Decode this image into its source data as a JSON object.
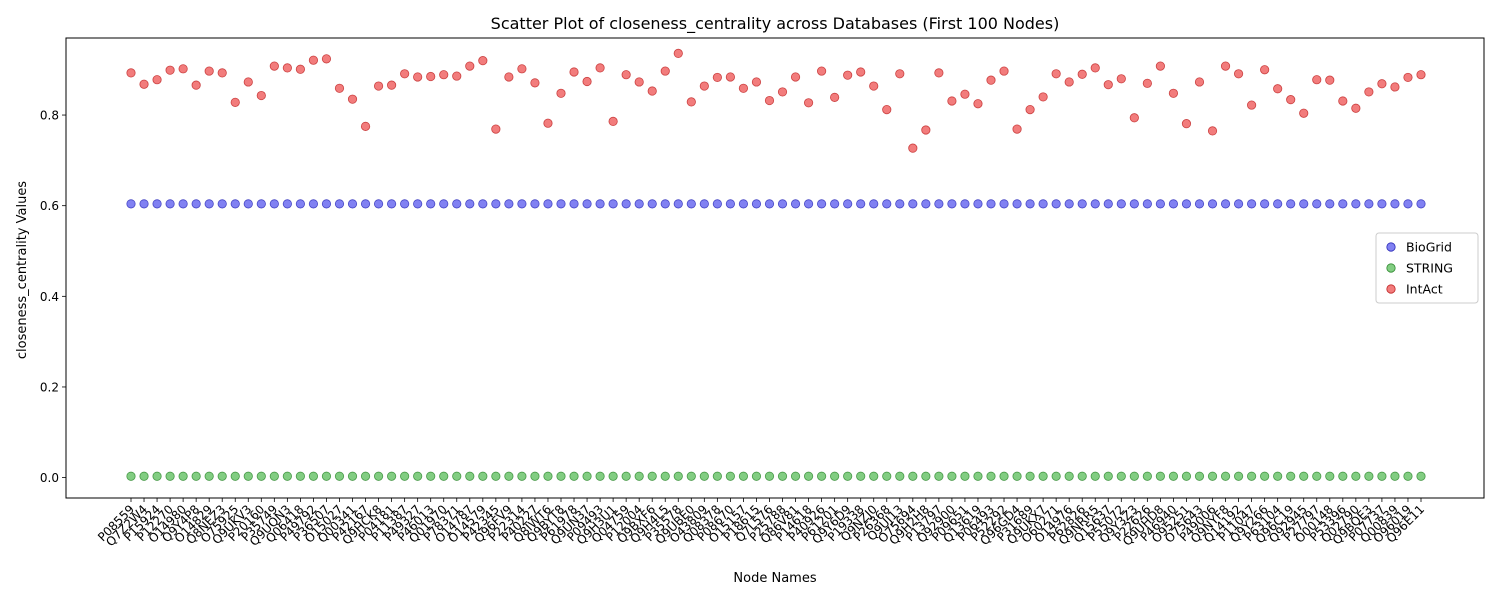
{
  "chart_data": {
    "type": "scatter",
    "title": "Scatter Plot of closeness_centrality across Databases (First 100 Nodes)",
    "xlabel": "Node Names",
    "ylabel": "closeness_centrality Values",
    "ylim": [
      -0.045,
      0.97
    ],
    "yticks": [
      0.0,
      0.2,
      0.4,
      0.6,
      0.8
    ],
    "ytick_labels": [
      "0.0",
      "0.2",
      "0.4",
      "0.6",
      "0.8"
    ],
    "grid": false,
    "legend_position": "center-right",
    "categories": [
      "P08559",
      "Q7Z2W4",
      "P15924",
      "P12270",
      "O14980",
      "Q9Y4P8",
      "O14829",
      "Q8NEZ3",
      "O75925",
      "Q9UKV3",
      "P20160",
      "P35749",
      "Q9UQN3",
      "Q06418",
      "P49792",
      "P36507",
      "O15027",
      "Q00341",
      "P42167",
      "Q9HCK8",
      "P04181",
      "P11387",
      "P49327",
      "P46013",
      "Q01970",
      "P78371",
      "O14787",
      "O14579",
      "P42345",
      "Q96FV9",
      "P22314",
      "P40227",
      "Q8IWT6",
      "Q9BYT8",
      "P61978",
      "Q9UN37",
      "P09493",
      "Q9H3U1",
      "Q04759",
      "P12004",
      "Q9BXF6",
      "Q9H4L5",
      "P35578",
      "Q9UBE0",
      "O43809",
      "Q08378",
      "P08670",
      "O15157",
      "P18615",
      "Q7L576",
      "P25788",
      "Q86V81",
      "P14618",
      "P40926",
      "P61201",
      "Q9Y6D9",
      "P19338",
      "Q9NZJ0",
      "P26368",
      "Q9UJ13",
      "O75694",
      "Q9H2H8",
      "P13797",
      "Q92900",
      "P09651",
      "Q13619",
      "P06493",
      "P52292",
      "Q96GD4",
      "P31689",
      "Q9UKX7",
      "O60271",
      "O14976",
      "P62826",
      "Q9NRR5",
      "Q15637",
      "P55072",
      "Q9Y3Z3",
      "P22626",
      "Q9UHD8",
      "P46940",
      "O95251",
      "O75643",
      "P49006",
      "Q9NYF8",
      "Q14192",
      "P11047",
      "Q9Y266",
      "P63104",
      "Q96C19",
      "Q92945",
      "P27797",
      "O00148",
      "P53396",
      "Q02790",
      "Q9BQE3",
      "P07737",
      "Q00839",
      "O96019",
      "Q96E11"
    ],
    "category_labels": [
      "P08559",
      "Q7Z2W4",
      "P15924",
      "P12270",
      "O14980",
      "Q9Y4P8",
      "O14829",
      "Q8NEZ3",
      "O75925",
      "Q9UKV3",
      "P20160",
      "P35749",
      "Q9UQN3",
      "Q06418",
      "P49792",
      "P36507",
      "O15027",
      "Q00341",
      "P42167",
      "Q9HCK8",
      "P04181",
      "P11387",
      "P49327",
      "P46013",
      "Q01970",
      "P78371",
      "O14787",
      "O14579",
      "P42345",
      "Q96FV9",
      "P22314",
      "P40227",
      "Q8IWT6",
      "Q9BYT8",
      "P61978",
      "Q9UN37",
      "P09493",
      "Q9H3U1",
      "Q04759",
      "P12004",
      "Q9BXF6",
      "Q9H4L5",
      "P35578",
      "Q9UBE0",
      "O43809",
      "Q08378",
      "P08670",
      "O15157",
      "P18615",
      "Q7L576",
      "P25788",
      "Q86V81",
      "P14618",
      "P40926",
      "P61201",
      "Q9Y6D9",
      "P19338",
      "Q9NZJ0",
      "P26368",
      "Q9UJ13",
      "O75694",
      "Q9H2H8",
      "P13797",
      "Q92900",
      "P09651",
      "Q13619",
      "P06493",
      "P52292",
      "Q96GD4",
      "P31689",
      "Q9UKX7",
      "O60271",
      "O14976",
      "P62826",
      "Q9NRR5",
      "Q15637",
      "P55072",
      "Q9Y3Z3",
      "P22626",
      "Q9UHD8",
      "P46940",
      "O95251",
      "O75643",
      "P49006",
      "Q9NYF8",
      "Q14192",
      "P11047",
      "Q9Y266",
      "P63104",
      "Q96C19",
      "Q92945",
      "P27797",
      "O00148",
      "P53396",
      "Q02790",
      "Q9BQE3",
      "P07737",
      "Q00839",
      "O96019",
      "Q96E11"
    ],
    "series": [
      {
        "name": "BioGrid",
        "color": "#6b6bf0",
        "edge": "#2a2ab8",
        "values": [
          0.604,
          0.604,
          0.604,
          0.604,
          0.604,
          0.604,
          0.604,
          0.604,
          0.604,
          0.604,
          0.604,
          0.604,
          0.604,
          0.604,
          0.604,
          0.604,
          0.604,
          0.604,
          0.604,
          0.604,
          0.604,
          0.604,
          0.604,
          0.604,
          0.604,
          0.604,
          0.604,
          0.604,
          0.604,
          0.604,
          0.604,
          0.604,
          0.604,
          0.604,
          0.604,
          0.604,
          0.604,
          0.604,
          0.604,
          0.604,
          0.604,
          0.604,
          0.604,
          0.604,
          0.604,
          0.604,
          0.604,
          0.604,
          0.604,
          0.604,
          0.604,
          0.604,
          0.604,
          0.604,
          0.604,
          0.604,
          0.604,
          0.604,
          0.604,
          0.604,
          0.604,
          0.604,
          0.604,
          0.604,
          0.604,
          0.604,
          0.604,
          0.604,
          0.604,
          0.604,
          0.604,
          0.604,
          0.604,
          0.604,
          0.604,
          0.604,
          0.604,
          0.604,
          0.604,
          0.604,
          0.604,
          0.604,
          0.604,
          0.604,
          0.604,
          0.604,
          0.604,
          0.604,
          0.604,
          0.604,
          0.604,
          0.604,
          0.604,
          0.604,
          0.604,
          0.604,
          0.604,
          0.604,
          0.604,
          0.604
        ]
      },
      {
        "name": "STRING",
        "color": "#6cc46c",
        "edge": "#2f8a2f",
        "values": [
          0.003,
          0.003,
          0.003,
          0.003,
          0.003,
          0.003,
          0.003,
          0.003,
          0.003,
          0.003,
          0.003,
          0.003,
          0.003,
          0.003,
          0.003,
          0.003,
          0.003,
          0.003,
          0.003,
          0.003,
          0.003,
          0.003,
          0.003,
          0.003,
          0.003,
          0.003,
          0.003,
          0.003,
          0.003,
          0.003,
          0.003,
          0.003,
          0.003,
          0.003,
          0.003,
          0.003,
          0.003,
          0.003,
          0.003,
          0.003,
          0.003,
          0.003,
          0.003,
          0.003,
          0.003,
          0.003,
          0.003,
          0.003,
          0.003,
          0.003,
          0.003,
          0.003,
          0.003,
          0.003,
          0.003,
          0.003,
          0.003,
          0.003,
          0.003,
          0.003,
          0.003,
          0.003,
          0.003,
          0.003,
          0.003,
          0.003,
          0.003,
          0.003,
          0.003,
          0.003,
          0.003,
          0.003,
          0.003,
          0.003,
          0.003,
          0.003,
          0.003,
          0.003,
          0.003,
          0.003,
          0.003,
          0.003,
          0.003,
          0.003,
          0.003,
          0.003,
          0.003,
          0.003,
          0.003,
          0.003,
          0.003,
          0.003,
          0.003,
          0.003,
          0.003,
          0.003,
          0.003,
          0.003,
          0.003,
          0.003
        ]
      },
      {
        "name": "IntAct",
        "color": "#f06565",
        "edge": "#c02626",
        "values": [
          0.893,
          0.868,
          0.878,
          0.899,
          0.902,
          0.866,
          0.897,
          0.893,
          0.828,
          0.873,
          0.843,
          0.908,
          0.904,
          0.901,
          0.921,
          0.924,
          0.859,
          0.835,
          0.775,
          0.864,
          0.866,
          0.891,
          0.884,
          0.885,
          0.889,
          0.886,
          0.908,
          0.92,
          0.769,
          0.884,
          0.902,
          0.871,
          0.782,
          0.848,
          0.895,
          0.874,
          0.904,
          0.786,
          0.889,
          0.873,
          0.853,
          0.897,
          0.936,
          0.829,
          0.864,
          0.883,
          0.884,
          0.859,
          0.873,
          0.832,
          0.851,
          0.884,
          0.827,
          0.897,
          0.839,
          0.888,
          0.895,
          0.864,
          0.812,
          0.891,
          0.727,
          0.767,
          0.893,
          0.831,
          0.846,
          0.825,
          0.877,
          0.897,
          0.769,
          0.812,
          0.84,
          0.891,
          0.873,
          0.89,
          0.904,
          0.867,
          0.88,
          0.794,
          0.87,
          0.908,
          0.848,
          0.781,
          0.873,
          0.765,
          0.908,
          0.891,
          0.822,
          0.9,
          0.858,
          0.834,
          0.804,
          0.878,
          0.877,
          0.831,
          0.815,
          0.851,
          0.869,
          0.862,
          0.883,
          0.889
        ]
      }
    ]
  }
}
